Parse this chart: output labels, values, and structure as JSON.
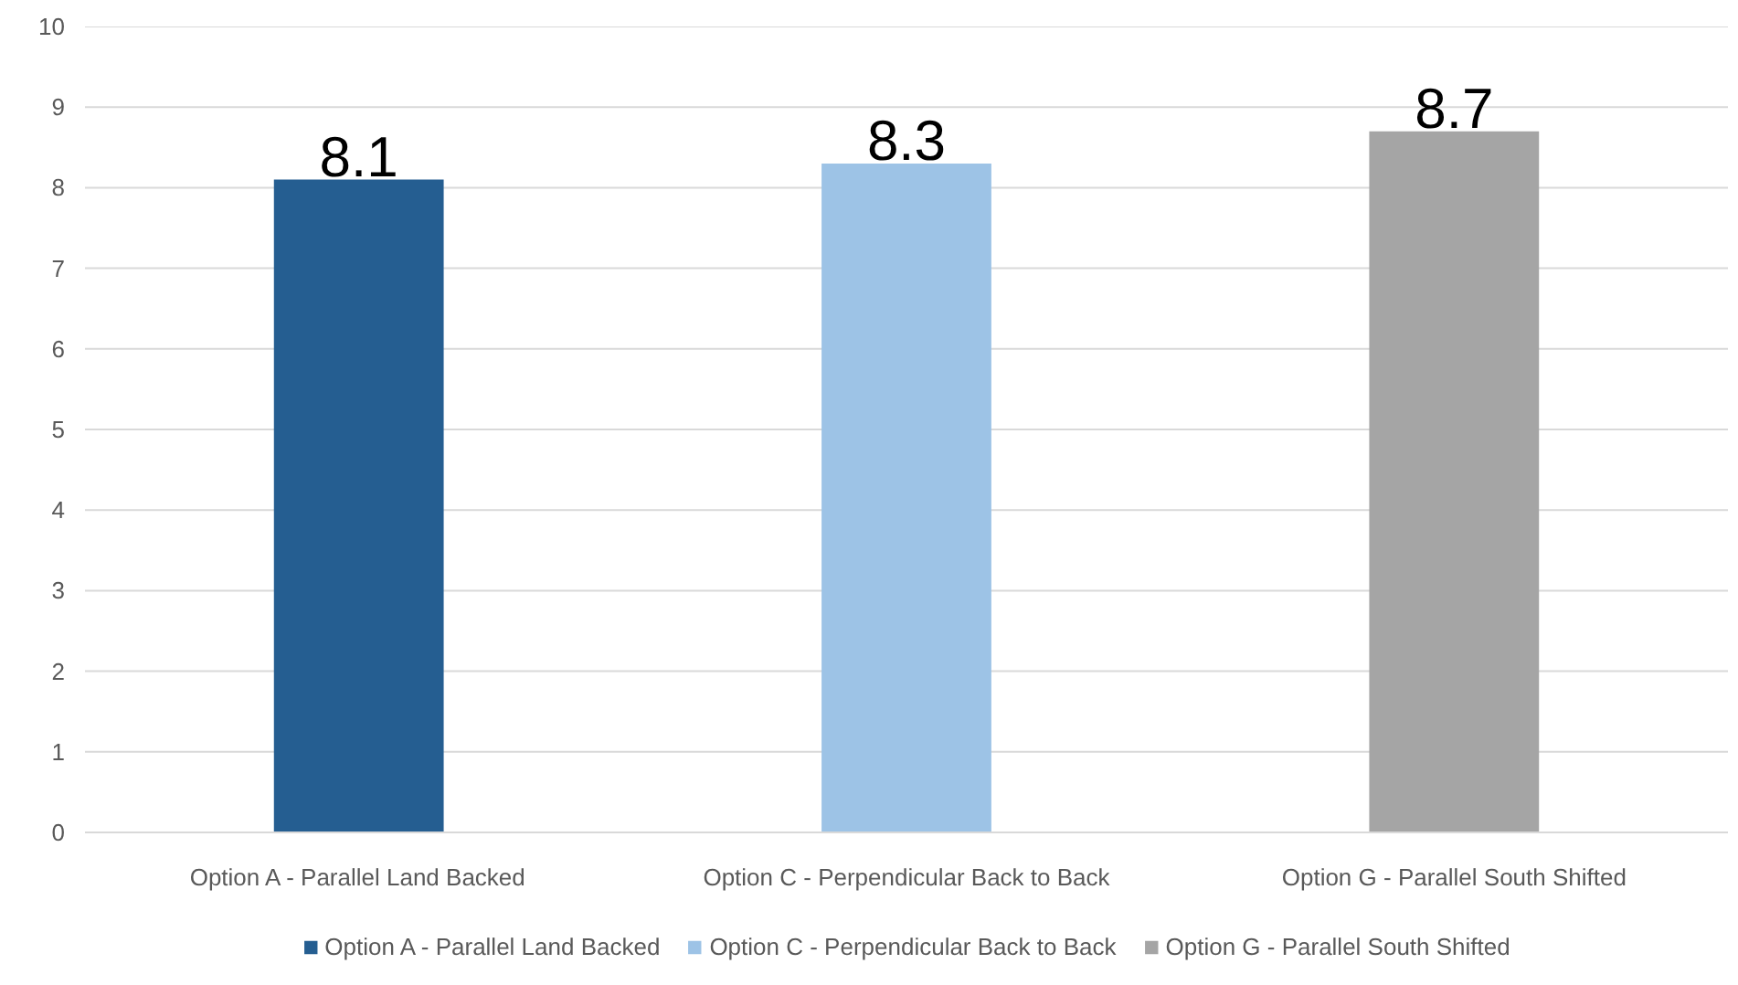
{
  "chart_data": {
    "type": "bar",
    "stacked": true,
    "categories": [
      "Option A - Parallel Land Backed",
      "Option C - Perpendicular Back to Back",
      "Option G - Parallel South Shifted"
    ],
    "series": [
      {
        "name": "Option A - Parallel Land Backed",
        "color": "#255e91",
        "values": [
          8.1,
          null,
          null
        ]
      },
      {
        "name": "Option C - Perpendicular Back to Back",
        "color": "#9dc3e6",
        "values": [
          null,
          8.3,
          null
        ]
      },
      {
        "name": "Option G - Parallel South Shifted",
        "color": "#a5a5a5",
        "values": [
          null,
          null,
          8.7
        ]
      }
    ],
    "ylim": [
      0,
      10
    ],
    "yticks": [
      0,
      1,
      2,
      3,
      4,
      5,
      6,
      7,
      8,
      9,
      10
    ],
    "grid": "y",
    "legend": "bottom",
    "data_labels": true
  }
}
